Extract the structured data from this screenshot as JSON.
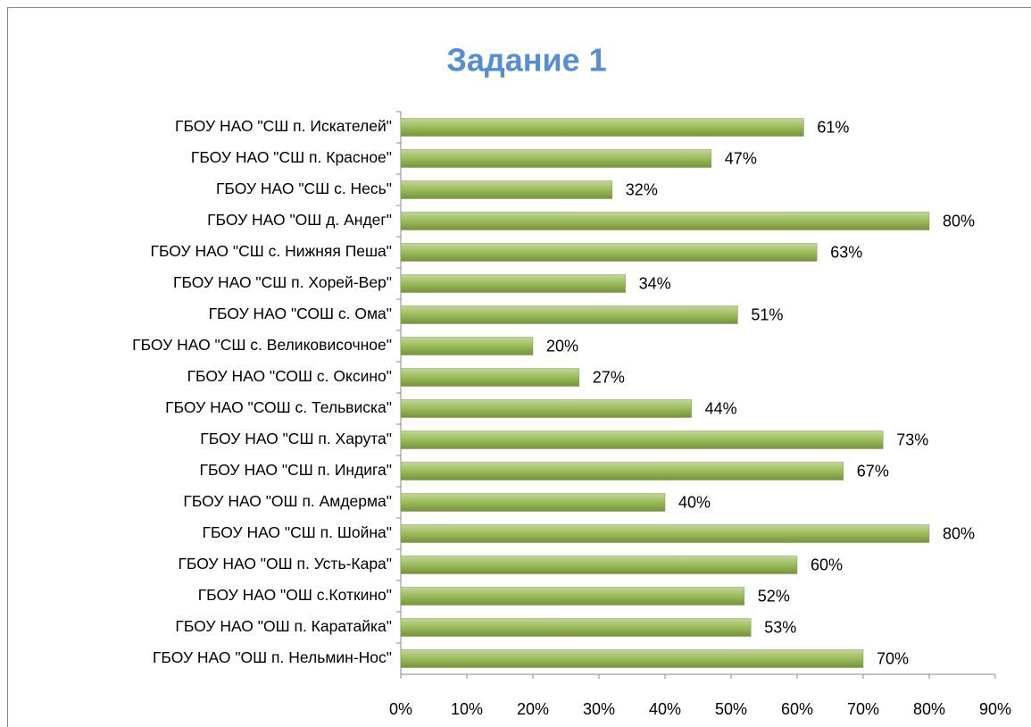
{
  "chart_data": {
    "type": "barh",
    "title": "Задание 1",
    "categories": [
      "ГБОУ НАО \"СШ п. Искателей\"",
      "ГБОУ НАО \"СШ п. Красное\"",
      "ГБОУ НАО \"СШ с. Несь\"",
      "ГБОУ НАО \"ОШ д. Андег\"",
      "ГБОУ НАО \"СШ с. Нижняя Пеша\"",
      "ГБОУ НАО \"СШ п. Хорей-Вер\"",
      "ГБОУ НАО \"СОШ с. Ома\"",
      "ГБОУ НАО \"СШ с. Великовисочное\"",
      "ГБОУ НАО \"СОШ с. Оксино\"",
      "ГБОУ НАО \"СОШ с. Тельвиска\"",
      "ГБОУ НАО \"СШ п. Харута\"",
      "ГБОУ НАО \"СШ п. Индига\"",
      "ГБОУ НАО \"ОШ п. Амдерма\"",
      "ГБОУ НАО \"СШ п. Шойна\"",
      "ГБОУ НАО \"ОШ п. Усть-Кара\"",
      "ГБОУ НАО \"ОШ с.Коткино\"",
      "ГБОУ НАО \"ОШ п. Каратайка\"",
      "ГБОУ НАО \"ОШ п. Нельмин-Нос\""
    ],
    "values": [
      61,
      47,
      32,
      80,
      63,
      34,
      51,
      20,
      27,
      44,
      73,
      67,
      40,
      80,
      60,
      52,
      53,
      70
    ],
    "value_labels": [
      "61%",
      "47%",
      "32%",
      "80%",
      "63%",
      "34%",
      "51%",
      "20%",
      "27%",
      "44%",
      "73%",
      "67%",
      "40%",
      "80%",
      "60%",
      "52%",
      "53%",
      "70%"
    ],
    "color": "#9bbb59",
    "xlim": [
      0,
      90
    ],
    "xticks": [
      {
        "value": 0,
        "label": "0%"
      },
      {
        "value": 10,
        "label": "10%"
      },
      {
        "value": 20,
        "label": "20%"
      },
      {
        "value": 30,
        "label": "30%"
      },
      {
        "value": 40,
        "label": "40%"
      },
      {
        "value": 50,
        "label": "50%"
      },
      {
        "value": 60,
        "label": "60%"
      },
      {
        "value": 70,
        "label": "70%"
      },
      {
        "value": 80,
        "label": "80%"
      },
      {
        "value": 90,
        "label": "90%"
      }
    ],
    "grid": false
  }
}
